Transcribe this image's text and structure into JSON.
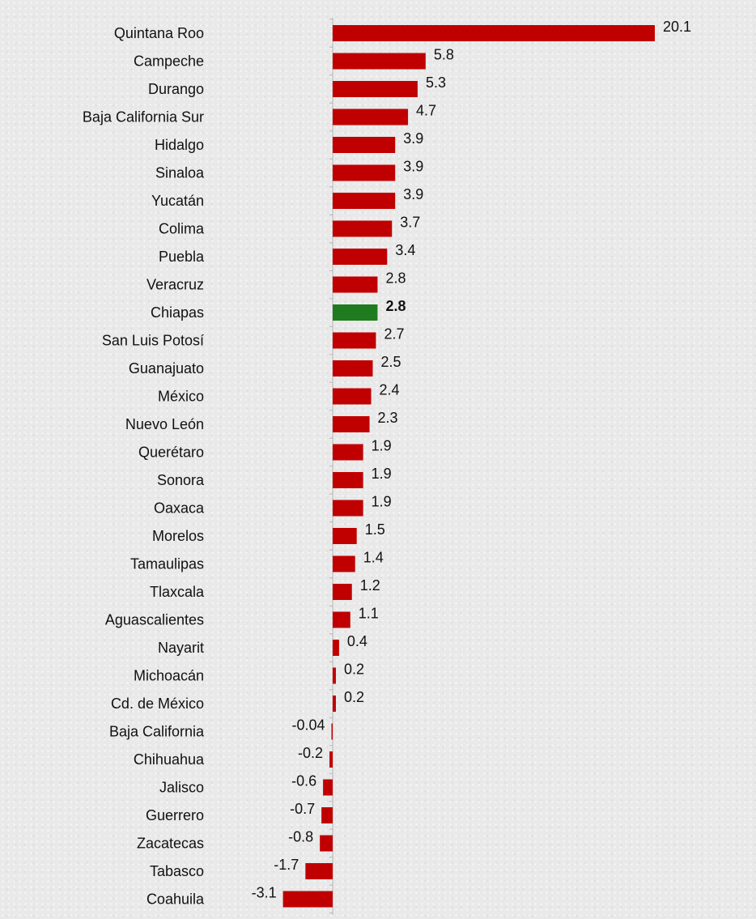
{
  "chart_data": {
    "type": "bar",
    "orientation": "horizontal",
    "categories": [
      "Quintana Roo",
      "Campeche",
      "Durango",
      "Baja California Sur",
      "Hidalgo",
      "Sinaloa",
      "Yucatán",
      "Colima",
      "Puebla",
      "Veracruz",
      "Chiapas",
      "San Luis Potosí",
      "Guanajuato",
      "México",
      "Nuevo León",
      "Querétaro",
      "Sonora",
      "Oaxaca",
      "Morelos",
      "Tamaulipas",
      "Tlaxcala",
      "Aguascalientes",
      "Nayarit",
      "Michoacán",
      "Cd. de México",
      "Baja California",
      "Chihuahua",
      "Jalisco",
      "Guerrero",
      "Zacatecas",
      "Tabasco",
      "Coahuila"
    ],
    "values": [
      20.1,
      5.8,
      5.3,
      4.7,
      3.9,
      3.9,
      3.9,
      3.7,
      3.4,
      2.8,
      2.8,
      2.7,
      2.5,
      2.4,
      2.3,
      1.9,
      1.9,
      1.9,
      1.5,
      1.4,
      1.2,
      1.1,
      0.4,
      0.2,
      0.2,
      -0.04,
      -0.2,
      -0.6,
      -0.7,
      -0.8,
      -1.7,
      -3.1
    ],
    "value_labels": [
      "20.1",
      "5.8",
      "5.3",
      "4.7",
      "3.9",
      "3.9",
      "3.9",
      "3.7",
      "3.4",
      "2.8",
      "2.8",
      "2.7",
      "2.5",
      "2.4",
      "2.3",
      "1.9",
      "1.9",
      "1.9",
      "1.5",
      "1.4",
      "1.2",
      "1.1",
      "0.4",
      "0.2",
      "0.2",
      "-0.04",
      "-0.2",
      "-0.6",
      "-0.7",
      "-0.8",
      "-1.7",
      "-3.1"
    ],
    "highlight": "Chiapas",
    "xlim": [
      -3.1,
      20.1
    ],
    "grid": false,
    "legend": "none",
    "colors": {
      "bar": "#c00000",
      "highlight": "#1e7c1e",
      "axis": "#b4b4b4",
      "text": "#111111"
    }
  }
}
